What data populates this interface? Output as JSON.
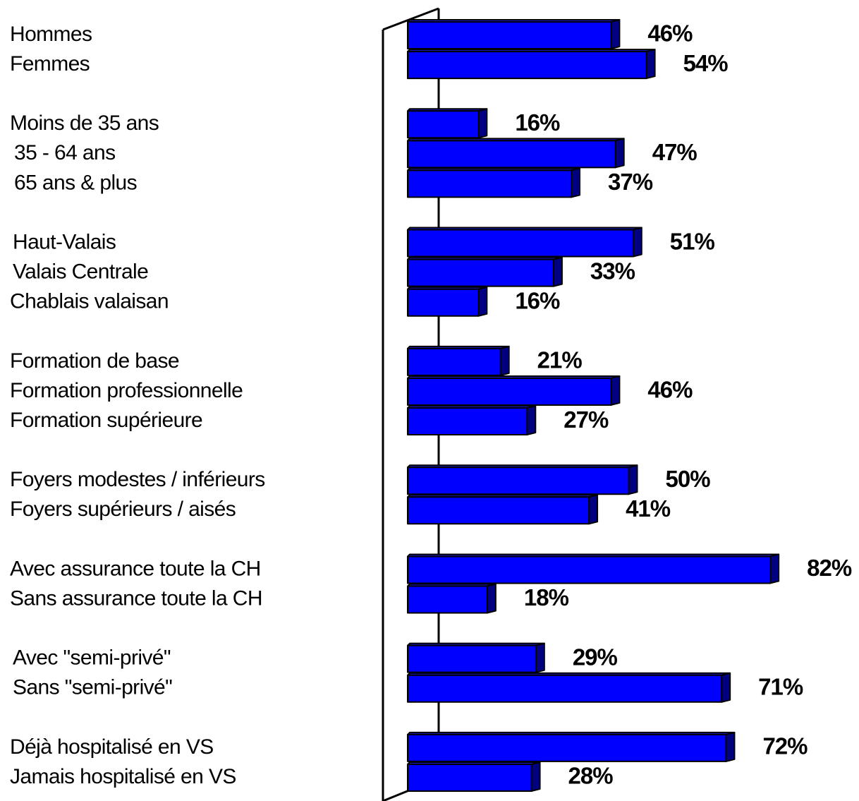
{
  "chart_data": {
    "type": "bar",
    "orientation": "horizontal",
    "categories": [
      "Hommes",
      "Femmes",
      "Moins de 35 ans",
      "35 - 64 ans",
      "65 ans & plus",
      "Haut-Valais",
      "Valais Centrale",
      "Chablais valaisan",
      "Formation de base",
      "Formation professionnelle",
      "Formation supérieure",
      "Foyers modestes / inférieurs",
      "Foyers supérieurs / aisés",
      "Avec assurance toute la CH",
      "Sans assurance toute la CH",
      "Avec \"semi-privé\"",
      "Sans \"semi-privé\"",
      "Déjà hospitalisé en VS",
      "Jamais hospitalisé en VS"
    ],
    "values": [
      46,
      54,
      16,
      47,
      37,
      51,
      33,
      16,
      21,
      46,
      27,
      50,
      41,
      82,
      18,
      29,
      71,
      72,
      28
    ],
    "value_labels": [
      "46%",
      "54%",
      "16%",
      "47%",
      "37%",
      "51%",
      "33%",
      "16%",
      "21%",
      "46%",
      "27%",
      "50%",
      "41%",
      "82%",
      "18%",
      "29%",
      "71%",
      "72%",
      "28%"
    ],
    "color": "#0000ff"
  }
}
